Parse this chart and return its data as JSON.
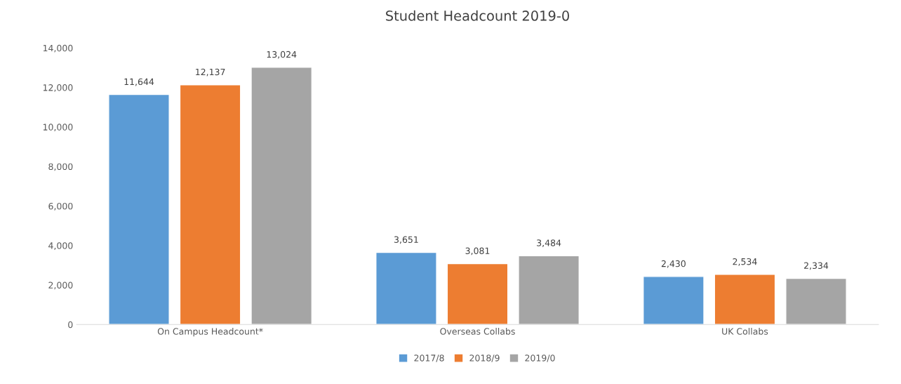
{
  "chart_data": {
    "type": "bar",
    "title": "Student Headcount 2019-0",
    "categories": [
      "On Campus Headcount*",
      "Overseas Collabs",
      "UK Collabs"
    ],
    "series": [
      {
        "name": "2017/8",
        "color": "#5b9bd5",
        "values": [
          11644,
          3651,
          2430
        ],
        "value_labels": [
          "11,644",
          "3,651",
          "2,430"
        ]
      },
      {
        "name": "2018/9",
        "color": "#ed7d31",
        "values": [
          12137,
          3081,
          2534
        ],
        "value_labels": [
          "12,137",
          "3,081",
          "2,534"
        ]
      },
      {
        "name": "2019/0",
        "color": "#a5a5a5",
        "values": [
          13024,
          3484,
          2334
        ],
        "value_labels": [
          "13,024",
          "3,484",
          "2,334"
        ]
      }
    ],
    "ylim": [
      0,
      14000
    ],
    "yticks": [
      {
        "value": 0,
        "label": "0"
      },
      {
        "value": 2000,
        "label": "2,000"
      },
      {
        "value": 4000,
        "label": "4,000"
      },
      {
        "value": 6000,
        "label": "6,000"
      },
      {
        "value": 8000,
        "label": "8,000"
      },
      {
        "value": 10000,
        "label": "10,000"
      },
      {
        "value": 12000,
        "label": "12,000"
      },
      {
        "value": 14000,
        "label": "14,000"
      }
    ],
    "grid": false,
    "legend": "bottom"
  }
}
